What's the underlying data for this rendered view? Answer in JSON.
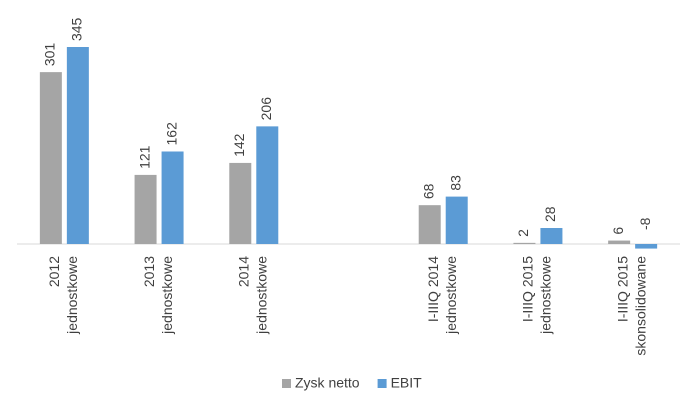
{
  "chart_data": {
    "type": "bar",
    "categories": [
      [
        "2012",
        "jednostkowe"
      ],
      [
        "2013",
        "jednostkowe"
      ],
      [
        "2014",
        "jednostkowe"
      ],
      null,
      [
        "I-IIIQ 2014",
        "jednostkowe"
      ],
      [
        "I-IIIQ 2015",
        "jednostkowe"
      ],
      [
        "I-IIIQ 2015",
        "skonsolidowane"
      ]
    ],
    "series": [
      {
        "name": "Zysk netto",
        "color": "#a5a5a5",
        "values": [
          301,
          121,
          142,
          null,
          68,
          2,
          6
        ]
      },
      {
        "name": "EBIT",
        "color": "#5b9bd5",
        "values": [
          345,
          162,
          206,
          null,
          83,
          28,
          -8
        ]
      }
    ],
    "legend": "bottom"
  }
}
